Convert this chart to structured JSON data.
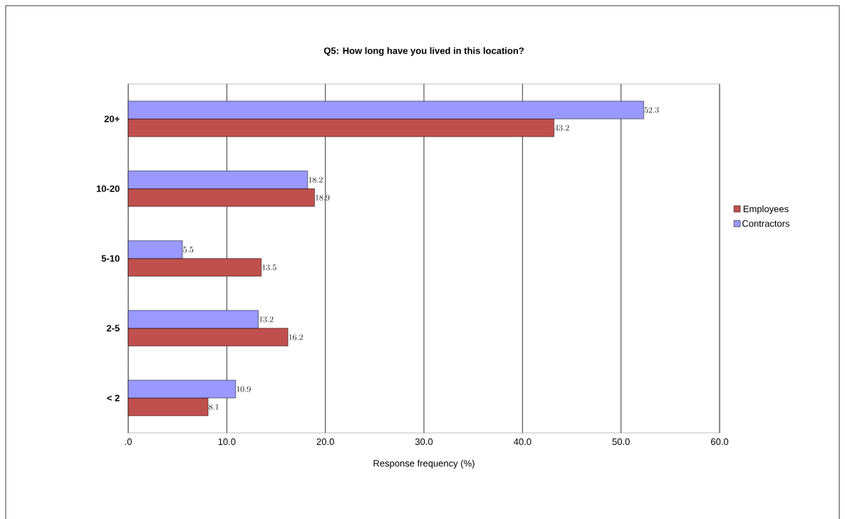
{
  "chart_data": {
    "type": "bar",
    "orientation": "horizontal",
    "title": "Q5: How long have you lived in this location?",
    "xlabel": "Response frequency (%)",
    "categories": [
      "20+",
      "10-20",
      "5-10",
      "2-5",
      "< 2"
    ],
    "series": [
      {
        "name": "Employees",
        "color": "#c0504d",
        "values": [
          43.2,
          18.9,
          13.5,
          16.2,
          8.1
        ]
      },
      {
        "name": "Contractors",
        "color": "#9999ff",
        "values": [
          52.3,
          18.2,
          5.5,
          13.2,
          10.9
        ]
      }
    ],
    "xlim": [
      0,
      60
    ],
    "xticks": [
      {
        "value": 0,
        "label": ".0"
      },
      {
        "value": 10,
        "label": "10.0"
      },
      {
        "value": 20,
        "label": "20.0"
      },
      {
        "value": 30,
        "label": "30.0"
      },
      {
        "value": 40,
        "label": "40.0"
      },
      {
        "value": 50,
        "label": "50.0"
      },
      {
        "value": 60,
        "label": "60.0"
      }
    ],
    "grid": "x",
    "legend": "right",
    "data_labels": true
  }
}
